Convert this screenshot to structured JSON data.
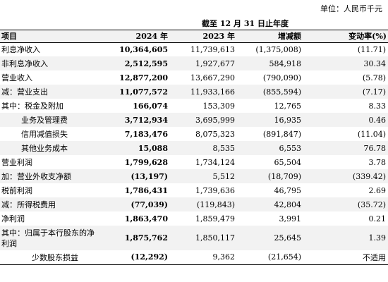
{
  "unit_note": "单位：人民币千元",
  "period_header": "截至 12 月 31 日止年度",
  "columns": {
    "item": "项目",
    "y2024": "2024 年",
    "y2023": "2023 年",
    "change": "增减额",
    "rate": "变动率(%)"
  },
  "rows": [
    {
      "label": "利息净收入",
      "y2024": "10,364,605",
      "y2023": "11,739,613",
      "change": "(1,375,008)",
      "rate": "(11.71)"
    },
    {
      "label": "非利息净收入",
      "y2024": "2,512,595",
      "y2023": "1,927,677",
      "change": "584,918",
      "rate": "30.34"
    },
    {
      "label": "营业收入",
      "y2024": "12,877,200",
      "y2023": "13,667,290",
      "change": "(790,090)",
      "rate": "(5.78)"
    },
    {
      "label": "减：营业支出",
      "y2024": "11,077,572",
      "y2023": "11,933,166",
      "change": "(855,594)",
      "rate": "(7.17)"
    },
    {
      "label": "其中：税金及附加",
      "y2024": "166,074",
      "y2023": "153,309",
      "change": "12,765",
      "rate": "8.33"
    },
    {
      "label": "业务及管理费",
      "y2024": "3,712,934",
      "y2023": "3,695,999",
      "change": "16,935",
      "rate": "0.46"
    },
    {
      "label": "信用减值损失",
      "y2024": "7,183,476",
      "y2023": "8,075,323",
      "change": "(891,847)",
      "rate": "(11.04)"
    },
    {
      "label": "其他业务成本",
      "y2024": "15,088",
      "y2023": "8,535",
      "change": "6,553",
      "rate": "76.78"
    },
    {
      "label": "营业利润",
      "y2024": "1,799,628",
      "y2023": "1,734,124",
      "change": "65,504",
      "rate": "3.78"
    },
    {
      "label": "加：营业外收支净额",
      "y2024": "(13,197)",
      "y2023": "5,512",
      "change": "(18,709)",
      "rate": "(339.42)"
    },
    {
      "label": "税前利润",
      "y2024": "1,786,431",
      "y2023": "1,739,636",
      "change": "46,795",
      "rate": "2.69"
    },
    {
      "label": "减：所得税费用",
      "y2024": "(77,039)",
      "y2023": "(119,843)",
      "change": "42,804",
      "rate": "(35.72)"
    },
    {
      "label": "净利润",
      "y2024": "1,863,470",
      "y2023": "1,859,479",
      "change": "3,991",
      "rate": "0.21"
    },
    {
      "label": "其中：归属于本行股东的净利润",
      "y2024": "1,875,762",
      "y2023": "1,850,117",
      "change": "25,645",
      "rate": "1.39"
    },
    {
      "label": "少数股东损益",
      "y2024": "(12,292)",
      "y2023": "9,362",
      "change": "(21,654)",
      "rate": "不适用"
    }
  ]
}
